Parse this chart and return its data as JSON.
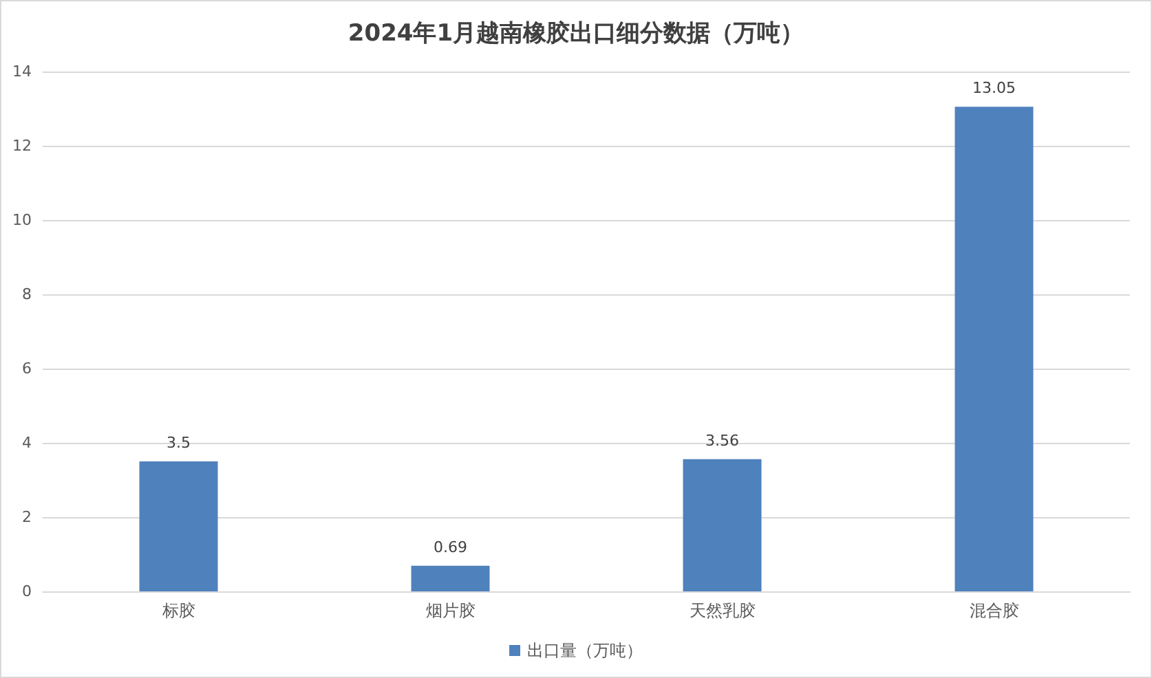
{
  "chart_data": {
    "type": "bar",
    "title": "2024年1月越南橡胶出口细分数据（万吨）",
    "categories": [
      "标胶",
      "烟片胶",
      "天然乳胶",
      "混合胶"
    ],
    "series": [
      {
        "name": "出口量（万吨）",
        "color": "#4f81bd",
        "values": [
          3.5,
          0.69,
          3.56,
          13.05
        ]
      }
    ],
    "ylim": [
      0,
      14
    ],
    "yticks": [
      0,
      2,
      4,
      6,
      8,
      10,
      12,
      14
    ],
    "grid": "y",
    "legend": "bottom",
    "data_labels": true
  }
}
